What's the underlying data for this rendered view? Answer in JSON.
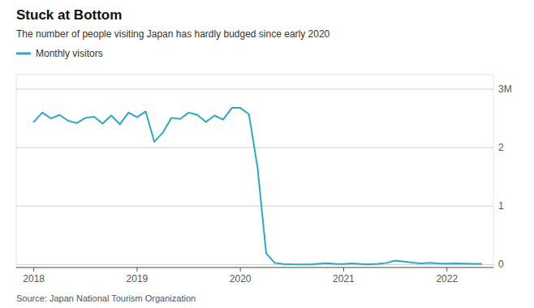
{
  "chart_data": {
    "type": "line",
    "title": "Stuck at Bottom",
    "subtitle": "The number of people visiting Japan has hardly budged since early 2020",
    "source": "Source: Japan National Tourism Organization",
    "x": [
      2018.0,
      2018.083,
      2018.167,
      2018.25,
      2018.333,
      2018.417,
      2018.5,
      2018.583,
      2018.667,
      2018.75,
      2018.833,
      2018.917,
      2019.0,
      2019.083,
      2019.167,
      2019.25,
      2019.333,
      2019.417,
      2019.5,
      2019.583,
      2019.667,
      2019.75,
      2019.833,
      2019.917,
      2020.0,
      2020.083,
      2020.167,
      2020.25,
      2020.333,
      2020.417,
      2020.5,
      2020.583,
      2020.667,
      2020.75,
      2020.833,
      2020.917,
      2021.0,
      2021.083,
      2021.167,
      2021.25,
      2021.333,
      2021.417,
      2021.5,
      2021.583,
      2021.667,
      2021.75,
      2021.833,
      2021.917,
      2022.0,
      2022.083,
      2022.167,
      2022.25,
      2022.333
    ],
    "series": [
      {
        "name": "Monthly visitors",
        "color": "#2ba8c8",
        "values": [
          2.44,
          2.6,
          2.5,
          2.56,
          2.46,
          2.42,
          2.51,
          2.53,
          2.41,
          2.55,
          2.4,
          2.6,
          2.52,
          2.62,
          2.1,
          2.26,
          2.51,
          2.49,
          2.6,
          2.56,
          2.44,
          2.55,
          2.48,
          2.68,
          2.68,
          2.57,
          1.65,
          0.19,
          0.028,
          0.01,
          0.004,
          0.003,
          0.003,
          0.012,
          0.022,
          0.012,
          0.01,
          0.018,
          0.008,
          0.005,
          0.012,
          0.028,
          0.068,
          0.052,
          0.032,
          0.018,
          0.03,
          0.018,
          0.015,
          0.02,
          0.016,
          0.014,
          0.012
        ]
      }
    ],
    "xlim": [
      2017.83,
      2022.45
    ],
    "xticks": [
      2018.0,
      2019.0,
      2020.0,
      2021.0,
      2022.0
    ],
    "ylim": [
      -0.05,
      3.25
    ],
    "yticks": [
      0,
      1,
      2,
      {
        "value": 3,
        "label": "3M"
      }
    ],
    "grid": true,
    "legend": "top"
  }
}
